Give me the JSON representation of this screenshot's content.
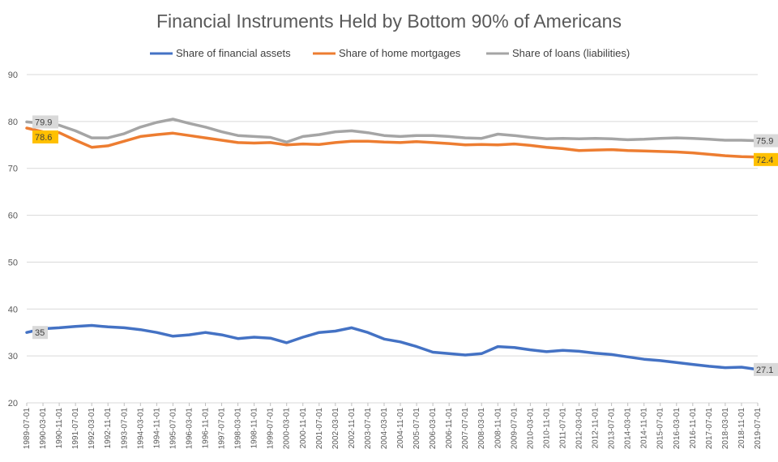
{
  "chart_data": {
    "type": "line",
    "title": "Financial Instruments Held by Bottom 90% of Americans",
    "legend_position": "top",
    "grid": true,
    "ylim": [
      20,
      90
    ],
    "yticks": [
      20,
      30,
      40,
      50,
      60,
      70,
      80,
      90
    ],
    "x": [
      "1989-07-01",
      "1990-03-01",
      "1990-11-01",
      "1991-07-01",
      "1992-03-01",
      "1992-11-01",
      "1993-07-01",
      "1994-03-01",
      "1994-11-01",
      "1995-07-01",
      "1996-03-01",
      "1996-11-01",
      "1997-07-01",
      "1998-03-01",
      "1998-11-01",
      "1999-07-01",
      "2000-03-01",
      "2000-11-01",
      "2001-07-01",
      "2002-03-01",
      "2002-11-01",
      "2003-07-01",
      "2004-03-01",
      "2004-11-01",
      "2005-07-01",
      "2006-03-01",
      "2006-11-01",
      "2007-07-01",
      "2008-03-01",
      "2008-11-01",
      "2009-07-01",
      "2010-03-01",
      "2010-11-01",
      "2011-07-01",
      "2012-03-01",
      "2012-11-01",
      "2013-07-01",
      "2014-03-01",
      "2014-11-01",
      "2015-07-01",
      "2016-03-01",
      "2016-11-01",
      "2017-07-01",
      "2018-03-01",
      "2018-11-01",
      "2019-07-01"
    ],
    "series": [
      {
        "name": "Share of financial assets",
        "color": "#4472c4",
        "values": [
          35.0,
          35.8,
          36.0,
          36.3,
          36.5,
          36.2,
          36.0,
          35.6,
          35.0,
          34.2,
          34.5,
          35.0,
          34.5,
          33.7,
          34.0,
          33.8,
          32.8,
          34.0,
          35.0,
          35.3,
          36.0,
          35.0,
          33.6,
          33.0,
          32.0,
          30.8,
          30.5,
          30.2,
          30.5,
          32.0,
          31.8,
          31.3,
          30.9,
          31.2,
          31.0,
          30.6,
          30.3,
          29.8,
          29.3,
          29.0,
          28.6,
          28.2,
          27.8,
          27.5,
          27.6,
          27.1
        ],
        "first_label": "35",
        "last_label": "27.1"
      },
      {
        "name": "Share of home mortgages",
        "color": "#ed7d31",
        "values": [
          78.6,
          77.8,
          77.6,
          76.0,
          74.5,
          74.8,
          75.8,
          76.8,
          77.2,
          77.5,
          77.0,
          76.5,
          76.0,
          75.5,
          75.4,
          75.5,
          75.0,
          75.2,
          75.1,
          75.5,
          75.8,
          75.8,
          75.6,
          75.5,
          75.7,
          75.5,
          75.3,
          75.0,
          75.1,
          75.0,
          75.2,
          74.9,
          74.5,
          74.2,
          73.8,
          73.9,
          74.0,
          73.8,
          73.7,
          73.6,
          73.5,
          73.3,
          73.0,
          72.7,
          72.5,
          72.4
        ],
        "first_label": "78.6",
        "last_label": "72.4"
      },
      {
        "name": "Share of loans (liabilities)",
        "color": "#a5a5a5",
        "values": [
          79.9,
          79.6,
          79.2,
          78.0,
          76.5,
          76.5,
          77.4,
          78.8,
          79.8,
          80.5,
          79.6,
          78.8,
          77.8,
          77.0,
          76.8,
          76.6,
          75.6,
          76.8,
          77.2,
          77.8,
          78.0,
          77.6,
          77.0,
          76.8,
          77.0,
          77.0,
          76.8,
          76.5,
          76.4,
          77.3,
          77.0,
          76.6,
          76.3,
          76.4,
          76.3,
          76.4,
          76.3,
          76.1,
          76.2,
          76.4,
          76.5,
          76.4,
          76.2,
          76.0,
          76.0,
          75.9
        ],
        "first_label": "79.9",
        "last_label": "75.9"
      }
    ]
  }
}
